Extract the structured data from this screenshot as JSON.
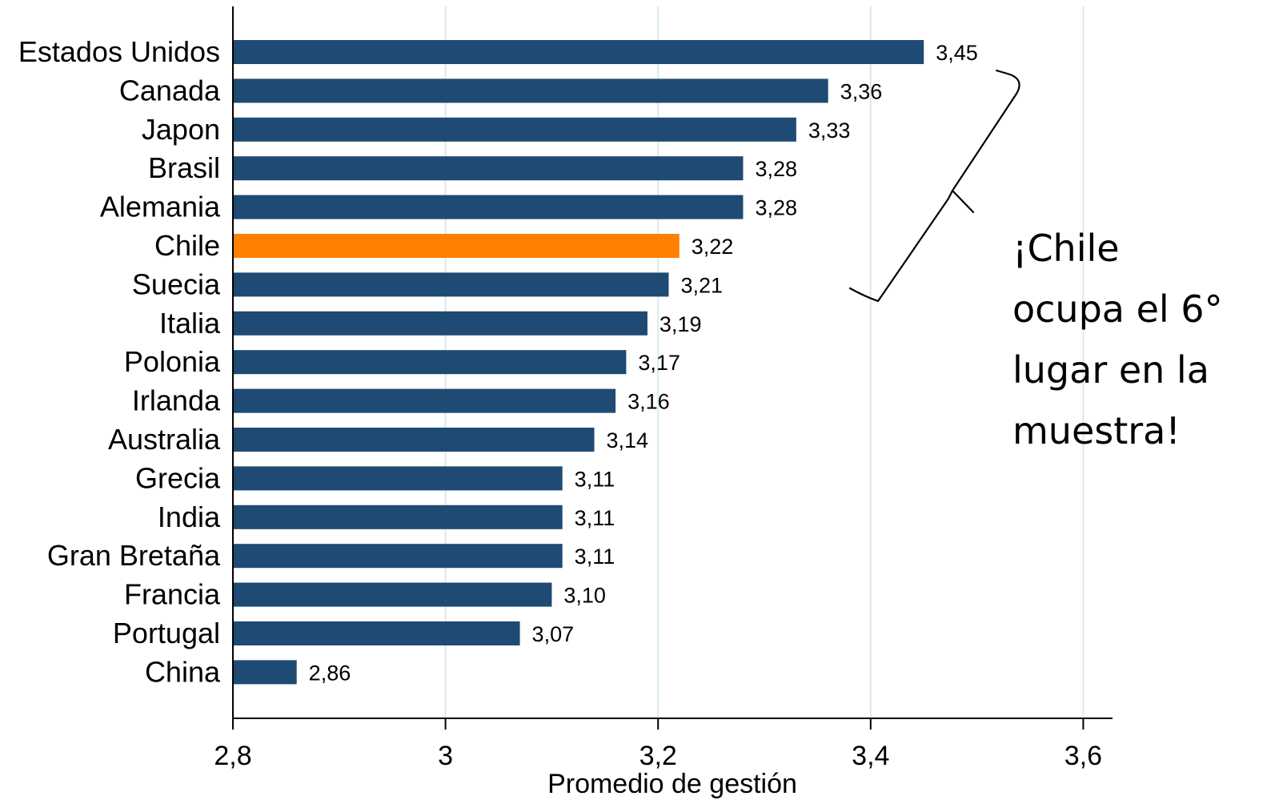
{
  "chart_data": {
    "type": "bar",
    "orientation": "horizontal",
    "categories": [
      "Estados Unidos",
      "Canada",
      "Japon",
      "Brasil",
      "Alemania",
      "Chile",
      "Suecia",
      "Italia",
      "Polonia",
      "Irlanda",
      "Australia",
      "Grecia",
      "India",
      "Gran Bretaña",
      "Francia",
      "Portugal",
      "China"
    ],
    "values": [
      3.45,
      3.36,
      3.33,
      3.28,
      3.28,
      3.22,
      3.21,
      3.19,
      3.17,
      3.16,
      3.14,
      3.11,
      3.11,
      3.11,
      3.1,
      3.07,
      2.86
    ],
    "value_labels": [
      "3,45",
      "3,36",
      "3,33",
      "3,28",
      "3,28",
      "3,22",
      "3,21",
      "3,19",
      "3,17",
      "3,16",
      "3,14",
      "3,11",
      "3,11",
      "3,11",
      "3,10",
      "3,07",
      "2,86"
    ],
    "highlight_category": "Chile",
    "colors": {
      "bar": "#1f4a73",
      "highlight": "#ff8000",
      "grid": "#d8ebe8",
      "axis": "#000000"
    },
    "xlabel": "Promedio de gestión",
    "xlim": [
      2.8,
      3.6
    ],
    "xticks": [
      2.8,
      3.0,
      3.2,
      3.4,
      3.6
    ],
    "xtick_labels": [
      "2,8",
      "3",
      "3,2",
      "3,4",
      "3,6"
    ],
    "grid": true
  },
  "callout": {
    "lines": [
      "¡Chile",
      "ocupa el 6°",
      "lugar en la",
      "muestra!"
    ]
  }
}
